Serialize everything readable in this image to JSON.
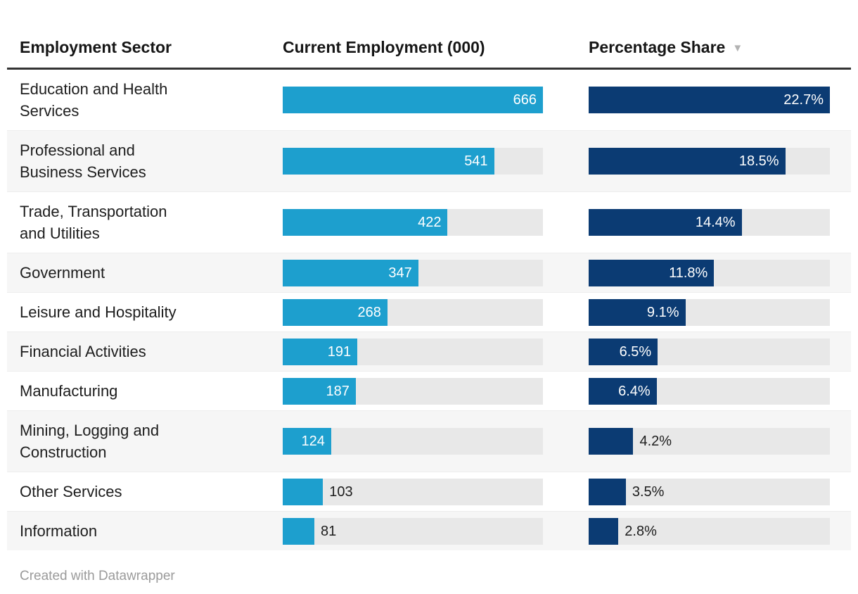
{
  "table": {
    "columns": [
      {
        "label": "Employment Sector"
      },
      {
        "label": "Current Employment (000)"
      },
      {
        "label": "Percentage Share",
        "sort_icon": "▼",
        "sorted": "desc"
      }
    ],
    "employment_max": 666,
    "share_max": 22.7,
    "rows": [
      {
        "sector": "Education and Health\nServices",
        "employment": 666,
        "employment_label": "666",
        "employment_label_inside": true,
        "share": 22.7,
        "share_label": "22.7%",
        "share_label_inside": true
      },
      {
        "sector": "Professional and\nBusiness Services",
        "employment": 541,
        "employment_label": "541",
        "employment_label_inside": true,
        "share": 18.5,
        "share_label": "18.5%",
        "share_label_inside": true
      },
      {
        "sector": "Trade, Transportation\nand Utilities",
        "employment": 422,
        "employment_label": "422",
        "employment_label_inside": true,
        "share": 14.4,
        "share_label": "14.4%",
        "share_label_inside": true
      },
      {
        "sector": "Government",
        "employment": 347,
        "employment_label": "347",
        "employment_label_inside": true,
        "share": 11.8,
        "share_label": "11.8%",
        "share_label_inside": true
      },
      {
        "sector": "Leisure and Hospitality",
        "employment": 268,
        "employment_label": "268",
        "employment_label_inside": true,
        "share": 9.1,
        "share_label": "9.1%",
        "share_label_inside": true
      },
      {
        "sector": "Financial Activities",
        "employment": 191,
        "employment_label": "191",
        "employment_label_inside": true,
        "share": 6.5,
        "share_label": "6.5%",
        "share_label_inside": true
      },
      {
        "sector": "Manufacturing",
        "employment": 187,
        "employment_label": "187",
        "employment_label_inside": true,
        "share": 6.4,
        "share_label": "6.4%",
        "share_label_inside": true
      },
      {
        "sector": "Mining, Logging and\nConstruction",
        "employment": 124,
        "employment_label": "124",
        "employment_label_inside": true,
        "share": 4.2,
        "share_label": "4.2%",
        "share_label_inside": false
      },
      {
        "sector": "Other Services",
        "employment": 103,
        "employment_label": "103",
        "employment_label_inside": false,
        "share": 3.5,
        "share_label": "3.5%",
        "share_label_inside": false
      },
      {
        "sector": "Information",
        "employment": 81,
        "employment_label": "81",
        "employment_label_inside": false,
        "share": 2.8,
        "share_label": "2.8%",
        "share_label_inside": false
      }
    ]
  },
  "footer": {
    "credit": "Created with Datawrapper"
  },
  "colors": {
    "employment_bar": "#1d9fce",
    "share_bar": "#0b3b73",
    "bar_track": "#e8e8e8",
    "row_stripe": "#f6f6f6",
    "header_rule": "#333333"
  },
  "chart_data": {
    "type": "table",
    "title": "",
    "columns": [
      "Employment Sector",
      "Current Employment (000)",
      "Percentage Share"
    ],
    "bar_columns": {
      "Current Employment (000)": {
        "type": "bar",
        "max": 666
      },
      "Percentage Share": {
        "type": "bar",
        "max": 22.7,
        "unit": "%"
      }
    },
    "sort": {
      "column": "Percentage Share",
      "direction": "desc"
    },
    "rows": [
      [
        "Education and Health Services",
        666,
        22.7
      ],
      [
        "Professional and Business Services",
        541,
        18.5
      ],
      [
        "Trade, Transportation and Utilities",
        422,
        14.4
      ],
      [
        "Government",
        347,
        11.8
      ],
      [
        "Leisure and Hospitality",
        268,
        9.1
      ],
      [
        "Financial Activities",
        191,
        6.5
      ],
      [
        "Manufacturing",
        187,
        6.4
      ],
      [
        "Mining, Logging and Construction",
        124,
        4.2
      ],
      [
        "Other Services",
        103,
        3.5
      ],
      [
        "Information",
        81,
        2.8
      ]
    ],
    "footer": "Created with Datawrapper"
  }
}
